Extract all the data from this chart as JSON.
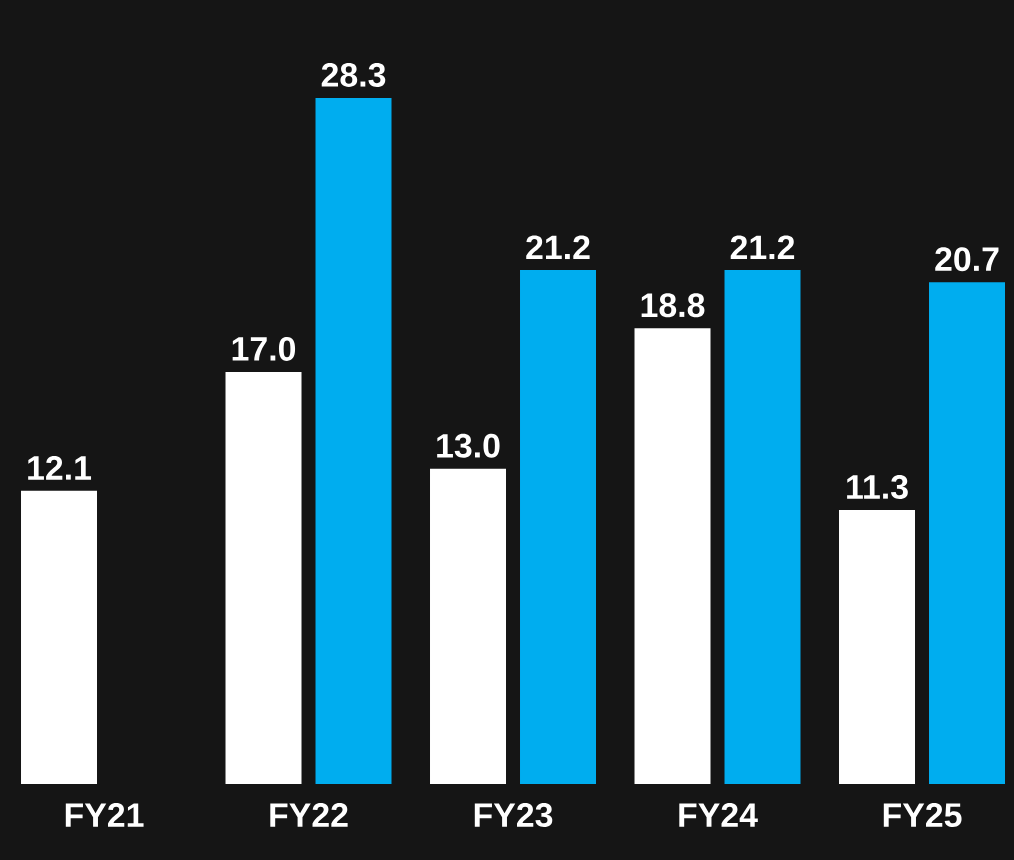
{
  "chart_data": {
    "type": "bar",
    "categories": [
      "FY21",
      "FY22",
      "FY23",
      "FY24",
      "FY25"
    ],
    "series": [
      {
        "color": "#ffffff",
        "values": [
          12.1,
          17.0,
          13.0,
          18.8,
          11.3
        ],
        "value_labels": [
          "12.1",
          "17.0",
          "13.0",
          "18.8",
          "11.3"
        ]
      },
      {
        "color": "#00adef",
        "values": [
          null,
          28.3,
          21.2,
          21.2,
          20.7
        ],
        "value_labels": [
          null,
          "28.3",
          "21.2",
          "21.2",
          "20.7"
        ]
      }
    ]
  }
}
